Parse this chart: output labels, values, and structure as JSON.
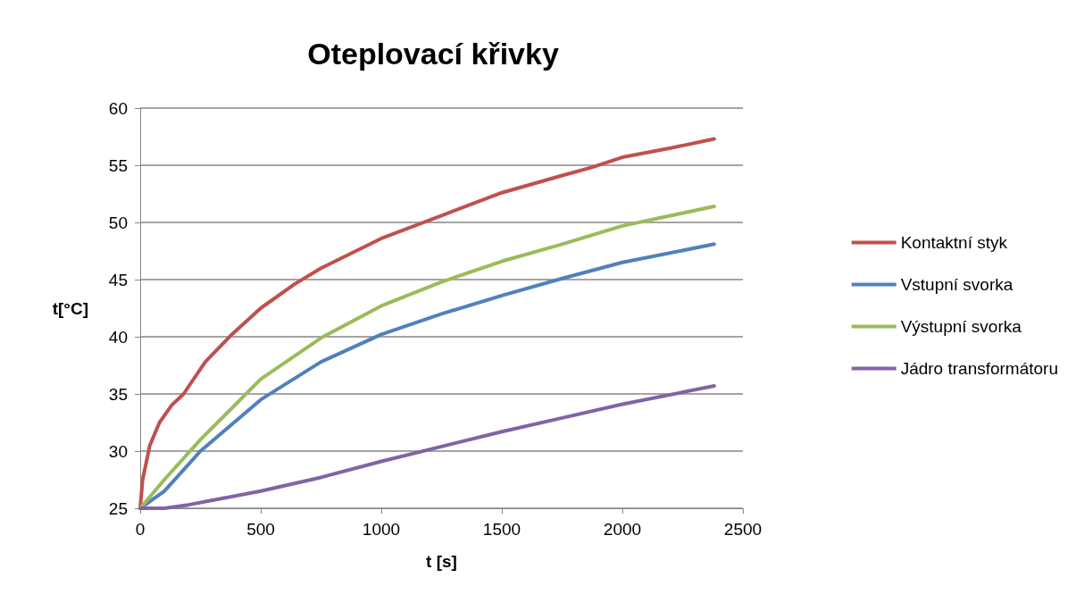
{
  "chart_data": {
    "type": "line",
    "title": "Oteplovací křivky",
    "xlabel": "t [s]",
    "ylabel": "t[°C]",
    "xlim": [
      0,
      2500
    ],
    "xticks": [
      0,
      500,
      1000,
      1500,
      2000,
      2500
    ],
    "ylim": [
      25,
      60
    ],
    "yticks": [
      25,
      30,
      35,
      40,
      45,
      50,
      55,
      60
    ],
    "grid": "y",
    "legend": "right",
    "marker": "none",
    "line_style": "solid",
    "series": [
      {
        "name": "Kontaktní styk",
        "color": "#c0504d",
        "x": [
          0,
          10,
          40,
          80,
          130,
          180,
          270,
          380,
          500,
          640,
          750,
          1000,
          1250,
          1500,
          1750,
          1870,
          2000,
          2200,
          2381
        ],
        "values": [
          25,
          27.5,
          30.5,
          32.5,
          34,
          35,
          37.8,
          40.2,
          42.5,
          44.6,
          46,
          48.6,
          50.6,
          52.6,
          54.1,
          54.8,
          55.7,
          56.5,
          57.3
        ]
      },
      {
        "name": "Vstupní svorka",
        "color": "#4f81bd",
        "x": [
          0,
          100,
          250,
          500,
          750,
          1000,
          1250,
          1500,
          1750,
          2000,
          2381
        ],
        "values": [
          25,
          26.5,
          30,
          34.5,
          37.8,
          40.2,
          42,
          43.6,
          45.1,
          46.5,
          48.1
        ]
      },
      {
        "name": "Výstupní svorka",
        "color": "#9bbb59",
        "x": [
          0,
          100,
          250,
          500,
          750,
          1000,
          1250,
          1500,
          1750,
          2000,
          2381
        ],
        "values": [
          25,
          27.5,
          31,
          36.3,
          39.9,
          42.7,
          44.8,
          46.6,
          48.1,
          49.7,
          51.4
        ]
      },
      {
        "name": "Jádro transformátoru",
        "color": "#8064a2",
        "x": [
          0,
          100,
          200,
          300,
          500,
          750,
          1000,
          1250,
          1500,
          1750,
          2000,
          2381
        ],
        "values": [
          25,
          25,
          25.3,
          25.7,
          26.5,
          27.7,
          29.1,
          30.4,
          31.7,
          32.9,
          34.1,
          35.7
        ]
      }
    ]
  }
}
